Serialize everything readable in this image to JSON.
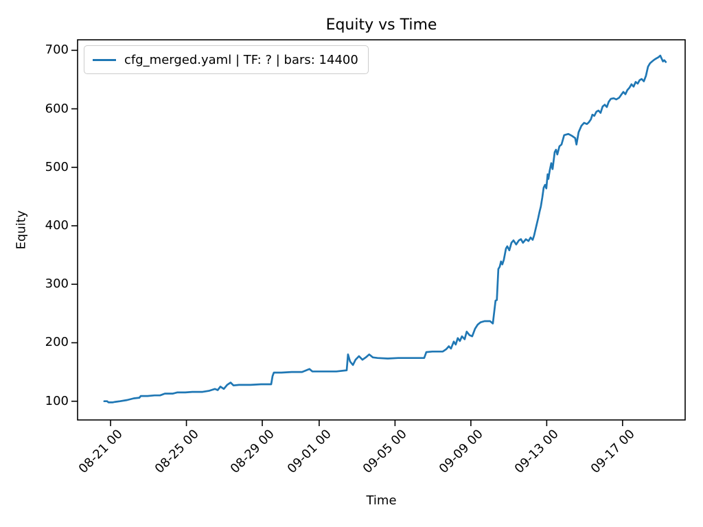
{
  "title": "Equity vs Time",
  "axes": {
    "xlabel": "Time",
    "ylabel": "Equity"
  },
  "legend": {
    "items": [
      {
        "label": "cfg_merged.yaml | TF: ? | bars: 14400",
        "color": "#1f77b4"
      }
    ]
  },
  "colors": {
    "background": "#ffffff",
    "spine": "#000000",
    "series": "#1f77b4",
    "legend_border": "#cccccc"
  },
  "chart_data": {
    "type": "line",
    "title": "Equity vs Time",
    "xlabel": "Time",
    "ylabel": "Equity",
    "grid": false,
    "legend_position": "upper left",
    "x_description": "days relative to the 08-21 00:00 tick",
    "xlim": [
      -1.74,
      30.3
    ],
    "ylim": [
      68,
      718
    ],
    "yticks": [
      100,
      200,
      300,
      400,
      500,
      600,
      700
    ],
    "xticks": [
      {
        "pos": 0,
        "label": "08-21 00"
      },
      {
        "pos": 4,
        "label": "08-25 00"
      },
      {
        "pos": 8,
        "label": "08-29 00"
      },
      {
        "pos": 11,
        "label": "09-01 00"
      },
      {
        "pos": 15,
        "label": "09-05 00"
      },
      {
        "pos": 19,
        "label": "09-09 00"
      },
      {
        "pos": 23,
        "label": "09-13 00"
      },
      {
        "pos": 27,
        "label": "09-17 00"
      }
    ],
    "series": [
      {
        "name": "cfg_merged.yaml | TF: ? | bars: 14400",
        "color": "#1f77b4",
        "points": [
          [
            -0.33,
            100
          ],
          [
            -0.18,
            100
          ],
          [
            -0.11,
            98
          ],
          [
            0.1,
            98
          ],
          [
            0.25,
            99
          ],
          [
            0.5,
            100
          ],
          [
            0.87,
            102
          ],
          [
            1.23,
            105
          ],
          [
            1.52,
            106
          ],
          [
            1.59,
            109
          ],
          [
            1.95,
            109
          ],
          [
            2.32,
            110
          ],
          [
            2.61,
            110
          ],
          [
            2.86,
            113
          ],
          [
            3.29,
            113
          ],
          [
            3.51,
            115
          ],
          [
            3.94,
            115
          ],
          [
            4.31,
            116
          ],
          [
            4.85,
            116
          ],
          [
            5.21,
            118
          ],
          [
            5.5,
            121
          ],
          [
            5.65,
            119
          ],
          [
            5.79,
            125
          ],
          [
            5.97,
            121
          ],
          [
            6.15,
            128
          ],
          [
            6.33,
            132
          ],
          [
            6.48,
            127
          ],
          [
            6.77,
            128
          ],
          [
            7.38,
            128
          ],
          [
            7.93,
            129
          ],
          [
            8.47,
            129
          ],
          [
            8.54,
            143
          ],
          [
            8.61,
            149
          ],
          [
            9.01,
            149
          ],
          [
            9.55,
            150
          ],
          [
            10.1,
            150
          ],
          [
            10.49,
            155
          ],
          [
            10.64,
            151
          ],
          [
            11.18,
            151
          ],
          [
            11.91,
            151
          ],
          [
            12.45,
            153
          ],
          [
            12.52,
            180
          ],
          [
            12.63,
            168
          ],
          [
            12.78,
            162
          ],
          [
            12.92,
            171
          ],
          [
            13.1,
            177
          ],
          [
            13.28,
            171
          ],
          [
            13.46,
            175
          ],
          [
            13.64,
            180
          ],
          [
            13.83,
            175
          ],
          [
            14.08,
            174
          ],
          [
            14.62,
            173
          ],
          [
            15.17,
            174
          ],
          [
            15.89,
            174
          ],
          [
            16.54,
            174
          ],
          [
            16.65,
            184
          ],
          [
            16.97,
            185
          ],
          [
            17.52,
            185
          ],
          [
            17.7,
            189
          ],
          [
            17.84,
            194
          ],
          [
            17.95,
            190
          ],
          [
            18.1,
            202
          ],
          [
            18.2,
            197
          ],
          [
            18.31,
            208
          ],
          [
            18.42,
            203
          ],
          [
            18.53,
            211
          ],
          [
            18.67,
            206
          ],
          [
            18.78,
            219
          ],
          [
            18.93,
            213
          ],
          [
            19.07,
            211
          ],
          [
            19.22,
            224
          ],
          [
            19.36,
            231
          ],
          [
            19.51,
            235
          ],
          [
            19.72,
            237
          ],
          [
            20.01,
            237
          ],
          [
            20.16,
            233
          ],
          [
            20.23,
            252
          ],
          [
            20.3,
            272
          ],
          [
            20.37,
            273
          ],
          [
            20.45,
            326
          ],
          [
            20.52,
            330
          ],
          [
            20.59,
            339
          ],
          [
            20.66,
            334
          ],
          [
            20.74,
            342
          ],
          [
            20.85,
            361
          ],
          [
            20.92,
            365
          ],
          [
            21.03,
            358
          ],
          [
            21.14,
            371
          ],
          [
            21.25,
            375
          ],
          [
            21.39,
            368
          ],
          [
            21.53,
            375
          ],
          [
            21.64,
            377
          ],
          [
            21.75,
            371
          ],
          [
            21.9,
            377
          ],
          [
            22.04,
            374
          ],
          [
            22.15,
            380
          ],
          [
            22.26,
            376
          ],
          [
            22.33,
            383
          ],
          [
            22.44,
            398
          ],
          [
            22.55,
            413
          ],
          [
            22.62,
            424
          ],
          [
            22.69,
            433
          ],
          [
            22.77,
            449
          ],
          [
            22.84,
            465
          ],
          [
            22.91,
            470
          ],
          [
            22.98,
            464
          ],
          [
            23.05,
            488
          ],
          [
            23.09,
            480
          ],
          [
            23.16,
            495
          ],
          [
            23.24,
            507
          ],
          [
            23.31,
            497
          ],
          [
            23.42,
            526
          ],
          [
            23.49,
            530
          ],
          [
            23.56,
            522
          ],
          [
            23.67,
            536
          ],
          [
            23.78,
            539
          ],
          [
            23.92,
            555
          ],
          [
            24.14,
            557
          ],
          [
            24.32,
            554
          ],
          [
            24.5,
            550
          ],
          [
            24.57,
            539
          ],
          [
            24.68,
            560
          ],
          [
            24.83,
            571
          ],
          [
            24.97,
            576
          ],
          [
            25.12,
            574
          ],
          [
            25.22,
            577
          ],
          [
            25.33,
            582
          ],
          [
            25.41,
            590
          ],
          [
            25.51,
            588
          ],
          [
            25.62,
            595
          ],
          [
            25.73,
            597
          ],
          [
            25.84,
            593
          ],
          [
            25.95,
            604
          ],
          [
            26.06,
            607
          ],
          [
            26.17,
            603
          ],
          [
            26.27,
            612
          ],
          [
            26.38,
            617
          ],
          [
            26.53,
            618
          ],
          [
            26.67,
            616
          ],
          [
            26.82,
            619
          ],
          [
            26.93,
            624
          ],
          [
            27.04,
            629
          ],
          [
            27.15,
            625
          ],
          [
            27.25,
            632
          ],
          [
            27.36,
            636
          ],
          [
            27.47,
            642
          ],
          [
            27.58,
            638
          ],
          [
            27.69,
            646
          ],
          [
            27.8,
            643
          ],
          [
            27.9,
            649
          ],
          [
            28.01,
            651
          ],
          [
            28.12,
            647
          ],
          [
            28.23,
            656
          ],
          [
            28.34,
            672
          ],
          [
            28.45,
            678
          ],
          [
            28.56,
            681
          ],
          [
            28.67,
            684
          ],
          [
            28.77,
            686
          ],
          [
            28.88,
            688
          ],
          [
            28.99,
            691
          ],
          [
            29.06,
            686
          ],
          [
            29.13,
            681
          ],
          [
            29.2,
            683
          ],
          [
            29.28,
            680
          ]
        ]
      }
    ]
  }
}
